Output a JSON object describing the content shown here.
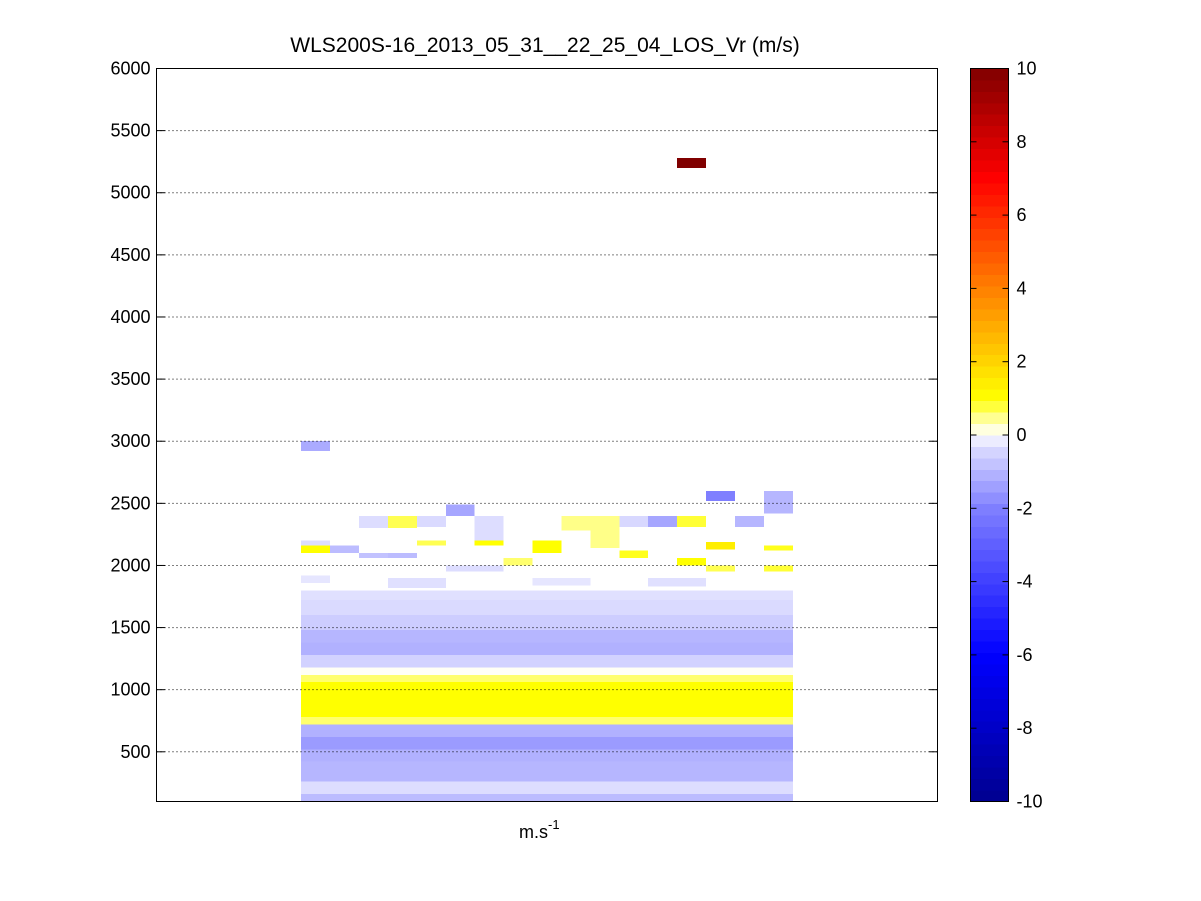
{
  "chart_data": {
    "type": "heatmap",
    "title": "WLS200S-16_2013_05_31__22_25_04_LOS_Vr (m/s)",
    "xlabel": {
      "base": "m.s",
      "exponent": "-1"
    },
    "ylabel": "",
    "ylim": [
      100,
      6000
    ],
    "yticks": [
      500,
      1000,
      1500,
      2000,
      2500,
      3000,
      3500,
      4000,
      4500,
      5000,
      5500,
      6000
    ],
    "grid": true,
    "grid_style": "dotted-horizontal",
    "xlim": [
      0,
      27
    ],
    "x_column_ranges": [
      [
        5,
        6
      ],
      [
        6,
        7
      ],
      [
        7,
        8
      ],
      [
        8,
        9
      ],
      [
        9,
        10
      ],
      [
        10,
        11
      ],
      [
        11,
        12
      ],
      [
        12,
        13
      ],
      [
        13,
        14
      ],
      [
        14,
        15
      ],
      [
        15,
        16
      ],
      [
        16,
        17
      ],
      [
        17,
        18
      ],
      [
        18,
        19
      ],
      [
        19,
        20
      ],
      [
        20,
        21
      ],
      [
        21,
        22
      ]
    ],
    "colorbar": {
      "vmin": -10,
      "vmax": 10,
      "ticks": [
        -10,
        -8,
        -6,
        -4,
        -2,
        0,
        2,
        4,
        6,
        8,
        10
      ],
      "colormap": "blue-white-yellow-red",
      "stops": [
        {
          "value": -10,
          "color": "#00008f"
        },
        {
          "value": -6,
          "color": "#0000ff"
        },
        {
          "value": -2,
          "color": "#7f7fff"
        },
        {
          "value": -0.25,
          "color": "#e0e0ff"
        },
        {
          "value": 0,
          "color": "#ffffff"
        },
        {
          "value": 0.25,
          "color": "#ffffcc"
        },
        {
          "value": 1,
          "color": "#ffff00"
        },
        {
          "value": 4,
          "color": "#ff8000"
        },
        {
          "value": 7,
          "color": "#ff0000"
        },
        {
          "value": 10,
          "color": "#800000"
        }
      ]
    },
    "cells": [
      {
        "x0": 18,
        "x1": 19,
        "y0": 5200,
        "y1": 5280,
        "v": 10
      },
      {
        "x0": 5,
        "x1": 6,
        "y0": 2920,
        "y1": 3000,
        "v": -1.2
      },
      {
        "x0": 19,
        "x1": 20,
        "y0": 2520,
        "y1": 2600,
        "v": -2
      },
      {
        "x0": 21,
        "x1": 22,
        "y0": 2420,
        "y1": 2600,
        "v": -1
      },
      {
        "x0": 10,
        "x1": 11,
        "y0": 2400,
        "y1": 2490,
        "v": -1.3
      },
      {
        "x0": 5,
        "x1": 22,
        "y0": 100,
        "y1": 160,
        "v": -0.9
      },
      {
        "x0": 5,
        "x1": 22,
        "y0": 160,
        "y1": 260,
        "v": -0.3
      },
      {
        "x0": 5,
        "x1": 22,
        "y0": 260,
        "y1": 420,
        "v": -1
      },
      {
        "x0": 5,
        "x1": 22,
        "y0": 420,
        "y1": 520,
        "v": -1.1
      },
      {
        "x0": 5,
        "x1": 22,
        "y0": 520,
        "y1": 620,
        "v": -1.5
      },
      {
        "x0": 5,
        "x1": 22,
        "y0": 620,
        "y1": 720,
        "v": -1.1
      },
      {
        "x0": 5,
        "x1": 22,
        "y0": 720,
        "y1": 780,
        "v": 0.6
      },
      {
        "x0": 5,
        "x1": 22,
        "y0": 780,
        "y1": 900,
        "v": 1
      },
      {
        "x0": 5,
        "x1": 22,
        "y0": 900,
        "y1": 1060,
        "v": 1
      },
      {
        "x0": 5,
        "x1": 22,
        "y0": 1060,
        "y1": 1120,
        "v": 0.6
      },
      {
        "x0": 5,
        "x1": 22,
        "y0": 1120,
        "y1": 1180,
        "v": 0.05
      },
      {
        "x0": 5,
        "x1": 22,
        "y0": 1180,
        "y1": 1280,
        "v": -0.5
      },
      {
        "x0": 5,
        "x1": 22,
        "y0": 1280,
        "y1": 1380,
        "v": -1.1
      },
      {
        "x0": 5,
        "x1": 22,
        "y0": 1380,
        "y1": 1480,
        "v": -1
      },
      {
        "x0": 5,
        "x1": 22,
        "y0": 1480,
        "y1": 1600,
        "v": -0.6
      },
      {
        "x0": 5,
        "x1": 22,
        "y0": 1600,
        "y1": 1720,
        "v": -0.35
      },
      {
        "x0": 5,
        "x1": 22,
        "y0": 1720,
        "y1": 1800,
        "v": -0.25
      },
      {
        "x0": 5,
        "x1": 6,
        "y0": 1860,
        "y1": 1920,
        "v": -0.2
      },
      {
        "x0": 8,
        "x1": 10,
        "y0": 1820,
        "y1": 1900,
        "v": -0.25
      },
      {
        "x0": 13,
        "x1": 15,
        "y0": 1840,
        "y1": 1900,
        "v": -0.2
      },
      {
        "x0": 17,
        "x1": 19,
        "y0": 1830,
        "y1": 1900,
        "v": -0.25
      },
      {
        "x0": 5,
        "x1": 6,
        "y0": 2100,
        "y1": 2160,
        "v": 1
      },
      {
        "x0": 6,
        "x1": 7,
        "y0": 2100,
        "y1": 2160,
        "v": -0.9
      },
      {
        "x0": 7,
        "x1": 8,
        "y0": 2060,
        "y1": 2100,
        "v": -0.8
      },
      {
        "x0": 8,
        "x1": 9,
        "y0": 2060,
        "y1": 2100,
        "v": -0.9
      },
      {
        "x0": 8,
        "x1": 9,
        "y0": 2300,
        "y1": 2400,
        "v": 0.7
      },
      {
        "x0": 9,
        "x1": 10,
        "y0": 2160,
        "y1": 2200,
        "v": 0.7
      },
      {
        "x0": 11,
        "x1": 12,
        "y0": 2160,
        "y1": 2200,
        "v": 1
      },
      {
        "x0": 11,
        "x1": 12,
        "y0": 2200,
        "y1": 2400,
        "v": -0.3
      },
      {
        "x0": 12,
        "x1": 13,
        "y0": 2000,
        "y1": 2060,
        "v": 0.6
      },
      {
        "x0": 13,
        "x1": 14,
        "y0": 2100,
        "y1": 2200,
        "v": 1
      },
      {
        "x0": 14,
        "x1": 16,
        "y0": 2280,
        "y1": 2400,
        "v": 0.5
      },
      {
        "x0": 15,
        "x1": 16,
        "y0": 2140,
        "y1": 2300,
        "v": 0.5
      },
      {
        "x0": 16,
        "x1": 17,
        "y0": 2060,
        "y1": 2120,
        "v": 0.9
      },
      {
        "x0": 16,
        "x1": 17,
        "y0": 2310,
        "y1": 2400,
        "v": -0.4
      },
      {
        "x0": 17,
        "x1": 18,
        "y0": 2310,
        "y1": 2400,
        "v": -1.3
      },
      {
        "x0": 18,
        "x1": 19,
        "y0": 2310,
        "y1": 2400,
        "v": 0.8
      },
      {
        "x0": 18,
        "x1": 19,
        "y0": 2000,
        "y1": 2060,
        "v": 1
      },
      {
        "x0": 19,
        "x1": 20,
        "y0": 2130,
        "y1": 2190,
        "v": 1.4
      },
      {
        "x0": 20,
        "x1": 21,
        "y0": 2310,
        "y1": 2400,
        "v": -1
      },
      {
        "x0": 21,
        "x1": 22,
        "y0": 2120,
        "y1": 2160,
        "v": 0.9
      },
      {
        "x0": 7,
        "x1": 8,
        "y0": 2300,
        "y1": 2400,
        "v": -0.3
      },
      {
        "x0": 9,
        "x1": 10,
        "y0": 2310,
        "y1": 2400,
        "v": -0.35
      },
      {
        "x0": 5,
        "x1": 6,
        "y0": 2160,
        "y1": 2200,
        "v": -0.3
      },
      {
        "x0": 19,
        "x1": 20,
        "y0": 1950,
        "y1": 2000,
        "v": 0.7
      },
      {
        "x0": 21,
        "x1": 22,
        "y0": 1950,
        "y1": 2000,
        "v": 0.8
      },
      {
        "x0": 10,
        "x1": 12,
        "y0": 1950,
        "y1": 2000,
        "v": -0.3
      }
    ]
  }
}
